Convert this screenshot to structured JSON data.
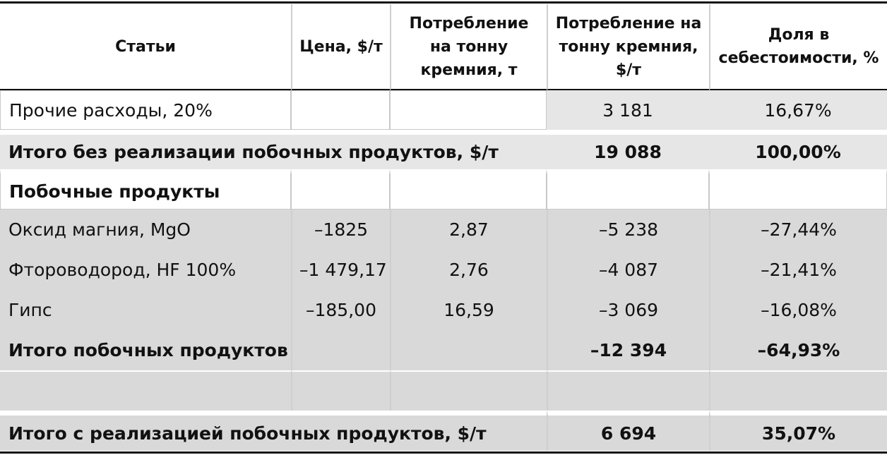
{
  "headers": [
    "Статьи",
    "Цена, $/т",
    "Потребление на тонну кремния, т",
    "Потребление на тонну кремния, $/т",
    "Доля в себестоимости, %"
  ],
  "rows": [
    {
      "label": "Прочие расходы, 20%",
      "price": "",
      "cons_t": "",
      "cons_usd": "3 181",
      "share": "16,67%"
    },
    {
      "label": "Итого без реализации побочных продуктов, $/т",
      "cons_usd": "19 088",
      "share": "100,00%"
    },
    {
      "label": "Побочные продукты",
      "price": "",
      "cons_t": "",
      "cons_usd": "",
      "share": ""
    },
    {
      "label": "Оксид магния, MgO",
      "price": "–1825",
      "cons_t": "2,87",
      "cons_usd": "–5 238",
      "share": "–27,44%"
    },
    {
      "label": "Фтороводород, HF 100%",
      "price": "–1 479,17",
      "cons_t": "2,76",
      "cons_usd": "–4 087",
      "share": "–21,41%"
    },
    {
      "label": "Гипс",
      "price": "–185,00",
      "cons_t": "16,59",
      "cons_usd": "–3 069",
      "share": "–16,08%"
    },
    {
      "label": "Итого побочных продуктов",
      "price": "",
      "cons_t": "",
      "cons_usd": "–12 394",
      "share": "–64,93%"
    },
    {
      "label": "",
      "price": "",
      "cons_t": "",
      "cons_usd": "",
      "share": ""
    },
    {
      "label": "Итого с реализацией побочных продуктов, $/т",
      "cons_usd": "6 694",
      "share": "35,07%"
    }
  ]
}
